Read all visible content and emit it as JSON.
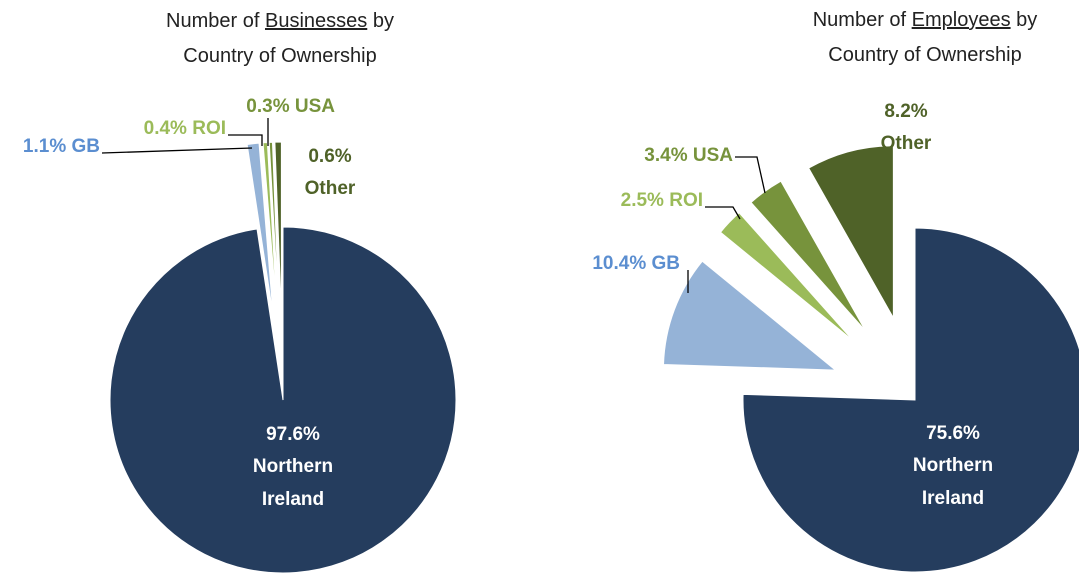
{
  "chart_data": [
    {
      "type": "pie",
      "title": "Number of Businesses by Country of Ownership",
      "title_emphasis": "Businesses",
      "categories": [
        "Northern Ireland",
        "GB",
        "ROI",
        "USA",
        "Other"
      ],
      "values": [
        97.6,
        1.1,
        0.4,
        0.3,
        0.6
      ],
      "value_labels": [
        "97.6%",
        "1.1%",
        "0.4%",
        "0.3%",
        "0.6%"
      ],
      "colors": [
        "#253d5e",
        "#95b3d7",
        "#9bbb59",
        "#77933c",
        "#4f6228"
      ]
    },
    {
      "type": "pie",
      "title": "Number of Employees by Country of Ownership",
      "title_emphasis": "Employees",
      "categories": [
        "Northern Ireland",
        "GB",
        "ROI",
        "USA",
        "Other"
      ],
      "values": [
        75.6,
        10.4,
        2.5,
        3.4,
        8.2
      ],
      "value_labels": [
        "75.6%",
        "10.4%",
        "2.5%",
        "3.4%",
        "8.2%"
      ],
      "colors": [
        "#253d5e",
        "#95b3d7",
        "#9bbb59",
        "#77933c",
        "#4f6228"
      ]
    }
  ]
}
